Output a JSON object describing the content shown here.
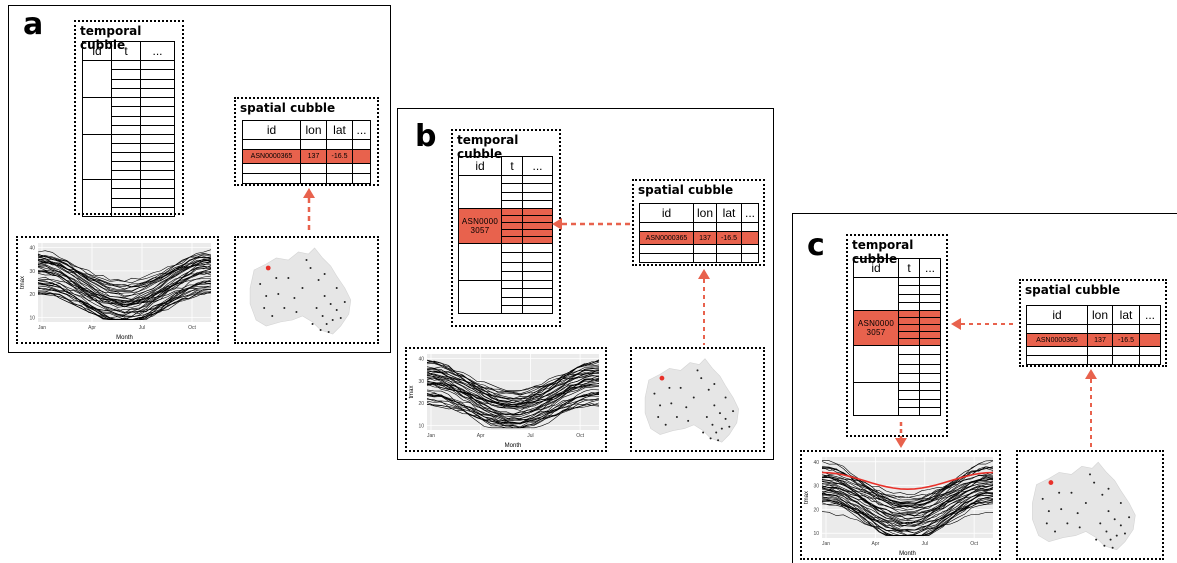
{
  "panels": [
    {
      "label": "a"
    },
    {
      "label": "b"
    },
    {
      "label": "c"
    }
  ],
  "temporal_title": "temporal cubble",
  "spatial_title": "spatial cubble",
  "temporal_headers": [
    "id",
    "t",
    "..."
  ],
  "spatial_headers": [
    "id",
    "lon",
    "lat",
    "..."
  ],
  "highlight_row": {
    "id": "ASN0000365",
    "lon": "137",
    "lat": "-16.5"
  },
  "temporal_highlight_id": "ASN0000 3057",
  "plot": {
    "ylabel": "tmax",
    "xlabel": "Month",
    "yticks": [
      "10",
      "20",
      "30",
      "40"
    ],
    "xticks": [
      "Jan",
      "Apr",
      "Jul",
      "Oct"
    ]
  },
  "colors": {
    "highlight": "#e8624d",
    "line": "#000000",
    "plot_bg": "#ebebeb",
    "map": "#e6e6e6",
    "station_red": "#e8312a"
  }
}
